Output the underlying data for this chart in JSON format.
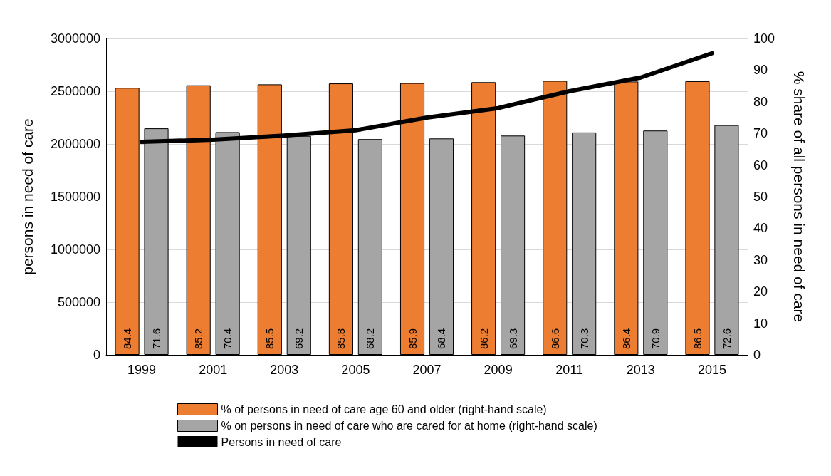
{
  "chart_data": {
    "type": "bar",
    "ylabel": "persons in need of care",
    "y2label": "% share of all persons in need of care",
    "categories": [
      "1999",
      "2001",
      "2003",
      "2005",
      "2007",
      "2009",
      "2011",
      "2013",
      "2015"
    ],
    "series": [
      {
        "name": "% of persons in need of care age 60 and older (right-hand scale)",
        "color": "#ed7d31",
        "axis": "y2",
        "values": [
          84.4,
          85.2,
          85.5,
          85.8,
          85.9,
          86.2,
          86.6,
          86.4,
          86.5
        ],
        "value_labels": [
          "84.4",
          "85.2",
          "85.5",
          "85.8",
          "85.9",
          "86.2",
          "86.6",
          "86.4",
          "86.5"
        ]
      },
      {
        "name": "% on persons in need of care who are cared for at home (right-hand scale)",
        "color": "#a5a5a5",
        "axis": "y2",
        "values": [
          71.6,
          70.4,
          69.2,
          68.2,
          68.4,
          69.3,
          70.3,
          70.9,
          72.6
        ],
        "value_labels": [
          "71.6",
          "70.4",
          "69.2",
          "68.2",
          "68.4",
          "69.3",
          "70.3",
          "70.9",
          "72.6"
        ]
      },
      {
        "name": "Persons in need of care",
        "type": "line",
        "color": "#000000",
        "axis": "y",
        "values": [
          2020000,
          2040000,
          2080000,
          2130000,
          2250000,
          2340000,
          2500000,
          2630000,
          2860000
        ]
      }
    ],
    "ylim": [
      0,
      3000000
    ],
    "yticks": [
      0,
      500000,
      1000000,
      1500000,
      2000000,
      2500000,
      3000000
    ],
    "y2lim": [
      0,
      100
    ],
    "y2ticks": [
      0,
      10,
      20,
      30,
      40,
      50,
      60,
      70,
      80,
      90,
      100
    ],
    "grid": "y",
    "legend": "bottom",
    "marker": "none",
    "line_style": "solid"
  }
}
